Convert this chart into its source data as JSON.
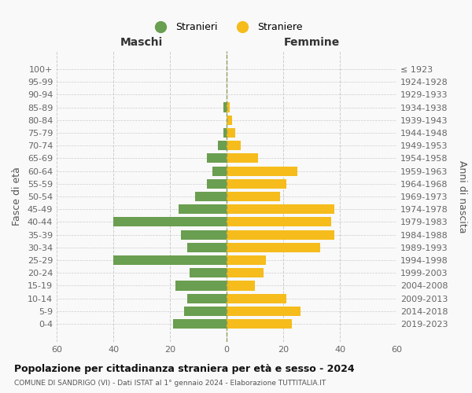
{
  "age_groups": [
    "100+",
    "95-99",
    "90-94",
    "85-89",
    "80-84",
    "75-79",
    "70-74",
    "65-69",
    "60-64",
    "55-59",
    "50-54",
    "45-49",
    "40-44",
    "35-39",
    "30-34",
    "25-29",
    "20-24",
    "15-19",
    "10-14",
    "5-9",
    "0-4"
  ],
  "birth_years": [
    "≤ 1923",
    "1924-1928",
    "1929-1933",
    "1934-1938",
    "1939-1943",
    "1944-1948",
    "1949-1953",
    "1954-1958",
    "1959-1963",
    "1964-1968",
    "1969-1973",
    "1974-1978",
    "1979-1983",
    "1984-1988",
    "1989-1993",
    "1994-1998",
    "1999-2003",
    "2004-2008",
    "2009-2013",
    "2014-2018",
    "2019-2023"
  ],
  "males": [
    0,
    0,
    0,
    1,
    0,
    1,
    3,
    7,
    5,
    7,
    11,
    17,
    40,
    16,
    14,
    40,
    13,
    18,
    14,
    15,
    19
  ],
  "females": [
    0,
    0,
    0,
    1,
    2,
    3,
    5,
    11,
    25,
    21,
    19,
    38,
    37,
    38,
    33,
    14,
    13,
    10,
    21,
    26,
    23
  ],
  "male_color": "#6a9e50",
  "female_color": "#f5bc1c",
  "center_line_color": "#8b9e5a",
  "grid_color": "#cccccc",
  "background_color": "#f9f9f9",
  "title": "Popolazione per cittadinanza straniera per età e sesso - 2024",
  "subtitle": "COMUNE DI SANDRIGO (VI) - Dati ISTAT al 1° gennaio 2024 - Elaborazione TUTTITALIA.IT",
  "xlabel_left": "Maschi",
  "xlabel_right": "Femmine",
  "ylabel_left": "Fasce di età",
  "ylabel_right": "Anni di nascita",
  "legend_male": "Stranieri",
  "legend_female": "Straniere",
  "xlim": 60
}
